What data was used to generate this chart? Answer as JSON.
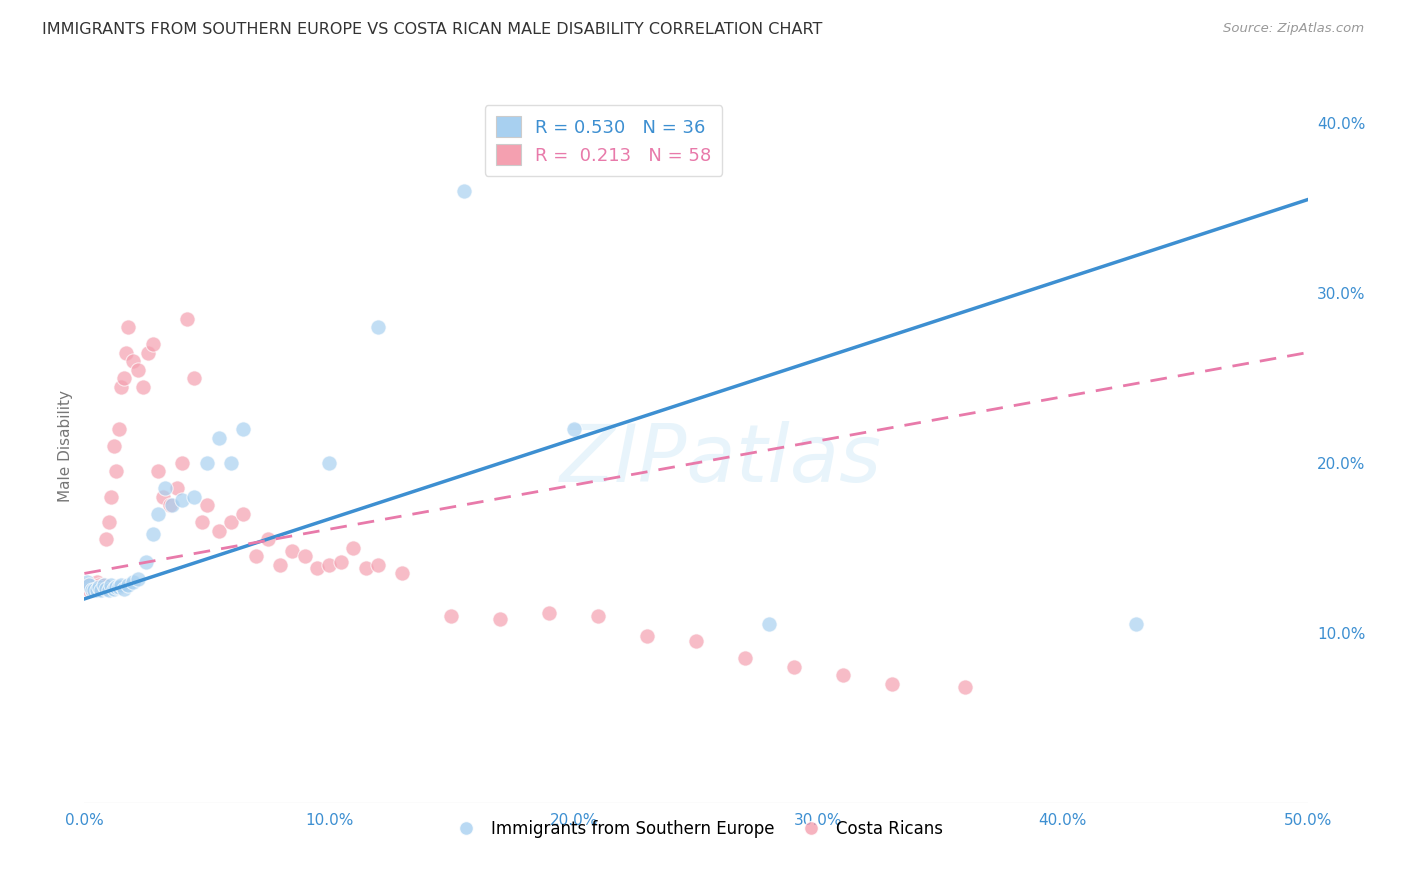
{
  "title": "IMMIGRANTS FROM SOUTHERN EUROPE VS COSTA RICAN MALE DISABILITY CORRELATION CHART",
  "source": "Source: ZipAtlas.com",
  "ylabel": "Male Disability",
  "xlim": [
    0.0,
    0.5
  ],
  "ylim": [
    0.0,
    0.42
  ],
  "xticks": [
    0.0,
    0.1,
    0.2,
    0.3,
    0.4,
    0.5
  ],
  "yticks": [
    0.1,
    0.2,
    0.3,
    0.4
  ],
  "ytick_labels": [
    "10.0%",
    "20.0%",
    "30.0%",
    "40.0%"
  ],
  "xtick_labels": [
    "0.0%",
    "10.0%",
    "20.0%",
    "30.0%",
    "40.0%",
    "50.0%"
  ],
  "legend_labels": [
    "Immigrants from Southern Europe",
    "Costa Ricans"
  ],
  "blue_color": "#a8d0f0",
  "pink_color": "#f4a0b0",
  "blue_line_color": "#3d8fd1",
  "pink_line_color": "#e87aaa",
  "background_color": "#ffffff",
  "grid_color": "#cccccc",
  "title_color": "#333333",
  "axis_label_color": "#777777",
  "watermark": "ZIPatlas",
  "blue_x": [
    0.001,
    0.002,
    0.003,
    0.004,
    0.005,
    0.006,
    0.007,
    0.008,
    0.009,
    0.01,
    0.011,
    0.012,
    0.013,
    0.014,
    0.015,
    0.016,
    0.018,
    0.02,
    0.022,
    0.025,
    0.028,
    0.03,
    0.033,
    0.036,
    0.04,
    0.045,
    0.05,
    0.055,
    0.06,
    0.065,
    0.1,
    0.12,
    0.155,
    0.2,
    0.28,
    0.43
  ],
  "blue_y": [
    0.13,
    0.128,
    0.125,
    0.125,
    0.125,
    0.127,
    0.125,
    0.128,
    0.126,
    0.125,
    0.128,
    0.126,
    0.127,
    0.127,
    0.128,
    0.126,
    0.128,
    0.13,
    0.132,
    0.142,
    0.158,
    0.17,
    0.185,
    0.175,
    0.178,
    0.18,
    0.2,
    0.215,
    0.2,
    0.22,
    0.2,
    0.28,
    0.36,
    0.22,
    0.105,
    0.105
  ],
  "pink_x": [
    0.001,
    0.002,
    0.003,
    0.004,
    0.005,
    0.006,
    0.007,
    0.008,
    0.009,
    0.01,
    0.011,
    0.012,
    0.013,
    0.014,
    0.015,
    0.016,
    0.017,
    0.018,
    0.02,
    0.022,
    0.024,
    0.026,
    0.028,
    0.03,
    0.032,
    0.035,
    0.038,
    0.04,
    0.042,
    0.045,
    0.048,
    0.05,
    0.055,
    0.06,
    0.065,
    0.07,
    0.075,
    0.08,
    0.085,
    0.09,
    0.095,
    0.1,
    0.105,
    0.11,
    0.115,
    0.12,
    0.13,
    0.15,
    0.17,
    0.19,
    0.21,
    0.23,
    0.25,
    0.27,
    0.29,
    0.31,
    0.33,
    0.36
  ],
  "pink_y": [
    0.128,
    0.125,
    0.125,
    0.127,
    0.13,
    0.128,
    0.126,
    0.128,
    0.155,
    0.165,
    0.18,
    0.21,
    0.195,
    0.22,
    0.245,
    0.25,
    0.265,
    0.28,
    0.26,
    0.255,
    0.245,
    0.265,
    0.27,
    0.195,
    0.18,
    0.175,
    0.185,
    0.2,
    0.285,
    0.25,
    0.165,
    0.175,
    0.16,
    0.165,
    0.17,
    0.145,
    0.155,
    0.14,
    0.148,
    0.145,
    0.138,
    0.14,
    0.142,
    0.15,
    0.138,
    0.14,
    0.135,
    0.11,
    0.108,
    0.112,
    0.11,
    0.098,
    0.095,
    0.085,
    0.08,
    0.075,
    0.07,
    0.068
  ],
  "blue_line_x0": 0.0,
  "blue_line_y0": 0.12,
  "blue_line_x1": 0.5,
  "blue_line_y1": 0.355,
  "pink_line_x0": 0.0,
  "pink_line_y0": 0.135,
  "pink_line_x1": 0.5,
  "pink_line_y1": 0.265
}
